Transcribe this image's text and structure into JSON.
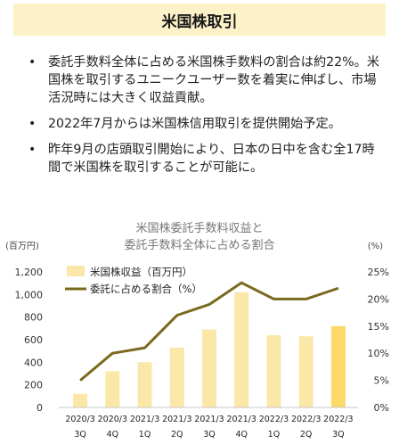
{
  "header": {
    "title": "米国株取引"
  },
  "bullets": [
    "委託手数料全体に占める米国株手数料の割合は約22%。米国株を取引するユニークユーザー数を着実に伸ばし、市場活況時には大きく収益貢献。",
    "2022年7月からは米国株信用取引を提供開始予定。",
    "昨年9月の店頭取引開始により、日本の日中を含む全17時間で米国株を取引することが可能に。"
  ],
  "colors": {
    "header_bg": "#fdf1c8",
    "bar": "#fbe7a8",
    "bar_highlight": "#fdd96a",
    "line": "#7a6a1e"
  },
  "chart_data": {
    "type": "bar+line",
    "title_lines": [
      "米国株委託手数料収益と",
      "委託手数料全体に占める割合"
    ],
    "y_left_unit": "(百万円)",
    "y_right_unit": "(%)",
    "y_left_ticks": [
      "0",
      "200",
      "400",
      "600",
      "800",
      "1,000",
      "1,200"
    ],
    "y_right_ticks": [
      "0%",
      "5%",
      "10%",
      "15%",
      "20%",
      "25%"
    ],
    "ylim_left": [
      0,
      1200
    ],
    "ylim_right": [
      0,
      25
    ],
    "grid": false,
    "legend_position": "top-left",
    "categories": [
      [
        "2020/3",
        "3Q"
      ],
      [
        "2020/3",
        "4Q"
      ],
      [
        "2021/3",
        "1Q"
      ],
      [
        "2021/3",
        "2Q"
      ],
      [
        "2021/3",
        "3Q"
      ],
      [
        "2021/3",
        "4Q"
      ],
      [
        "2022/3",
        "1Q"
      ],
      [
        "2022/3",
        "2Q"
      ],
      [
        "2022/3",
        "3Q"
      ]
    ],
    "series": [
      {
        "name": "米国株収益（百万円）",
        "type": "bar",
        "axis": "left",
        "values": [
          120,
          320,
          400,
          530,
          690,
          1020,
          640,
          630,
          720
        ]
      },
      {
        "name": "委託に占める割合（%）",
        "type": "line",
        "axis": "right",
        "values": [
          5,
          10,
          11,
          17,
          19,
          23,
          20,
          20,
          22
        ]
      }
    ]
  }
}
